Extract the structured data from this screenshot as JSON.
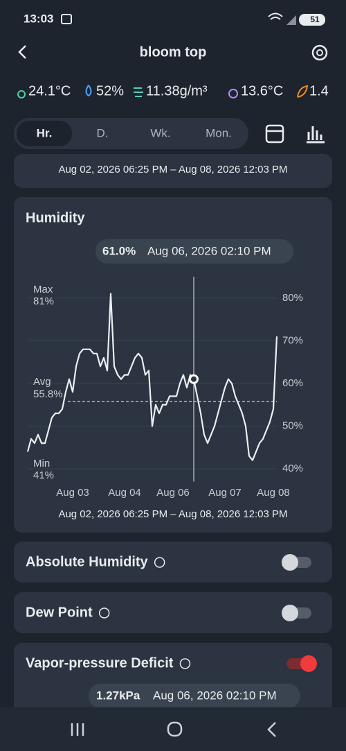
{
  "status_bar": {
    "time": "13:03",
    "battery": "51"
  },
  "header": {
    "title": "bloom top"
  },
  "readings": [
    "24.1°C",
    "52%",
    "11.38g/m³",
    "13.6°C",
    "1.4"
  ],
  "tabs": {
    "items": [
      "Hr.",
      "D.",
      "Wk.",
      "Mon."
    ],
    "selected": 0
  },
  "summary_card": {
    "range": "Aug 02, 2026 06:25 PM – Aug 08, 2026 12:03 PM"
  },
  "humidity_card": {
    "title": "Humidity",
    "tooltip": {
      "value": "61.0%",
      "time": "Aug 06, 2026 02:10 PM"
    },
    "chart": {
      "type": "line",
      "categories": [
        null,
        null,
        null,
        null,
        null,
        null,
        null,
        null,
        null,
        null,
        null,
        null,
        null,
        "Aug 03",
        null,
        null,
        null,
        null,
        null,
        null,
        null,
        null,
        null,
        null,
        null,
        null,
        null,
        null,
        "Aug 04",
        null,
        null,
        null,
        null,
        null,
        null,
        null,
        null,
        null,
        null,
        null,
        null,
        null,
        "Aug 06",
        null,
        null,
        null,
        null,
        null,
        null,
        null,
        null,
        null,
        null,
        null,
        null,
        null,
        null,
        "Aug 07",
        null,
        null,
        null,
        null,
        null,
        null,
        null,
        null,
        null,
        null,
        null,
        null,
        null,
        "Aug 08",
        null
      ],
      "values": [
        44,
        47,
        46,
        48,
        46,
        46,
        49,
        52,
        53,
        53,
        54,
        58,
        61,
        58,
        64,
        67,
        68,
        68,
        68,
        67,
        67,
        64,
        66,
        63,
        81,
        64,
        62,
        61,
        62,
        62,
        64,
        66,
        67,
        66,
        62,
        63,
        50,
        55,
        53,
        55,
        55,
        57,
        57,
        57,
        60,
        62,
        59,
        62,
        61,
        57,
        53,
        48,
        46,
        48,
        50,
        53,
        56,
        59,
        61,
        60,
        57,
        55,
        53,
        50,
        43,
        42,
        44,
        46,
        47,
        49,
        51,
        54,
        71
      ],
      "color": "#eceff2",
      "ylim": [
        37,
        85
      ],
      "yticks": [
        {
          "value": 80,
          "label": "80%"
        },
        {
          "value": 70,
          "label": "70%"
        },
        {
          "value": 60,
          "label": "60%"
        },
        {
          "value": 50,
          "label": "50%"
        },
        {
          "value": 40,
          "label": "40%"
        }
      ],
      "grid": true,
      "cursor_index": 48,
      "average": 55.8,
      "stats": [
        {
          "label": "Max",
          "value_label": "81%"
        },
        {
          "label": "Avg",
          "value_label": "55.8%"
        },
        {
          "label": "Min",
          "value_label": "41%"
        }
      ]
    },
    "range": "Aug 02, 2026 06:25 PM – Aug 08, 2026 12:03 PM"
  },
  "toggles": [
    {
      "label": "Absolute Humidity",
      "enabled": false
    },
    {
      "label": "Dew Point",
      "enabled": false
    },
    {
      "label": "Vapor-pressure Deficit",
      "enabled": true,
      "tooltip": {
        "value": "1.27kPa",
        "time": "Aug 06, 2026 02:10 PM"
      }
    }
  ]
}
